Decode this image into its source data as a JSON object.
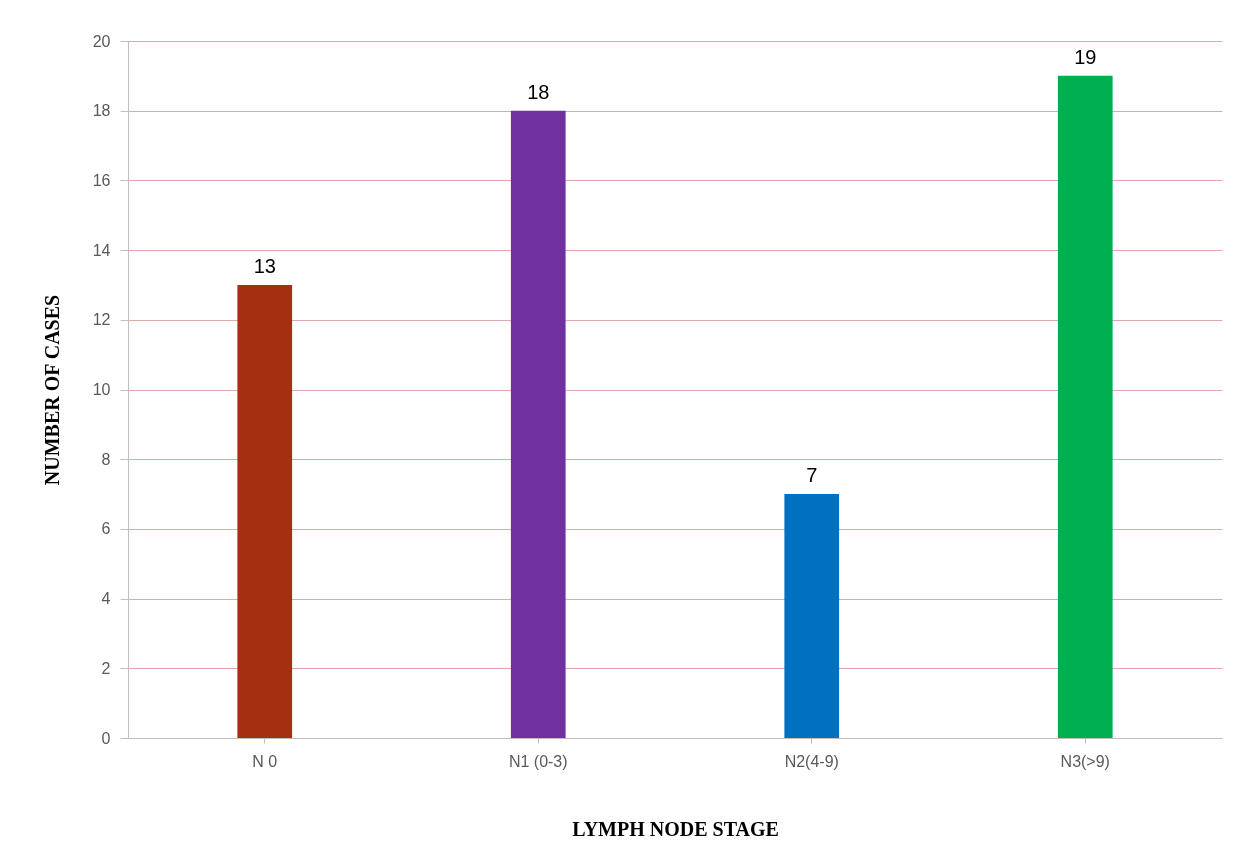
{
  "chart_data": {
    "type": "bar",
    "xlabel": "LYMPH NODE STAGE",
    "ylabel": "NUMBER OF CASES",
    "categories": [
      "N 0",
      "N1 (0-3)",
      "N2(4-9)",
      "N3(>9)"
    ],
    "values": [
      13,
      18,
      7,
      19
    ],
    "colors": [
      "#a52f11",
      "#7030a0",
      "#0070c0",
      "#00b050"
    ],
    "ylim": [
      0,
      20
    ],
    "yticks": [
      0,
      2,
      4,
      6,
      8,
      10,
      12,
      14,
      16,
      18,
      20
    ],
    "grid": "y",
    "data_labels": true
  }
}
